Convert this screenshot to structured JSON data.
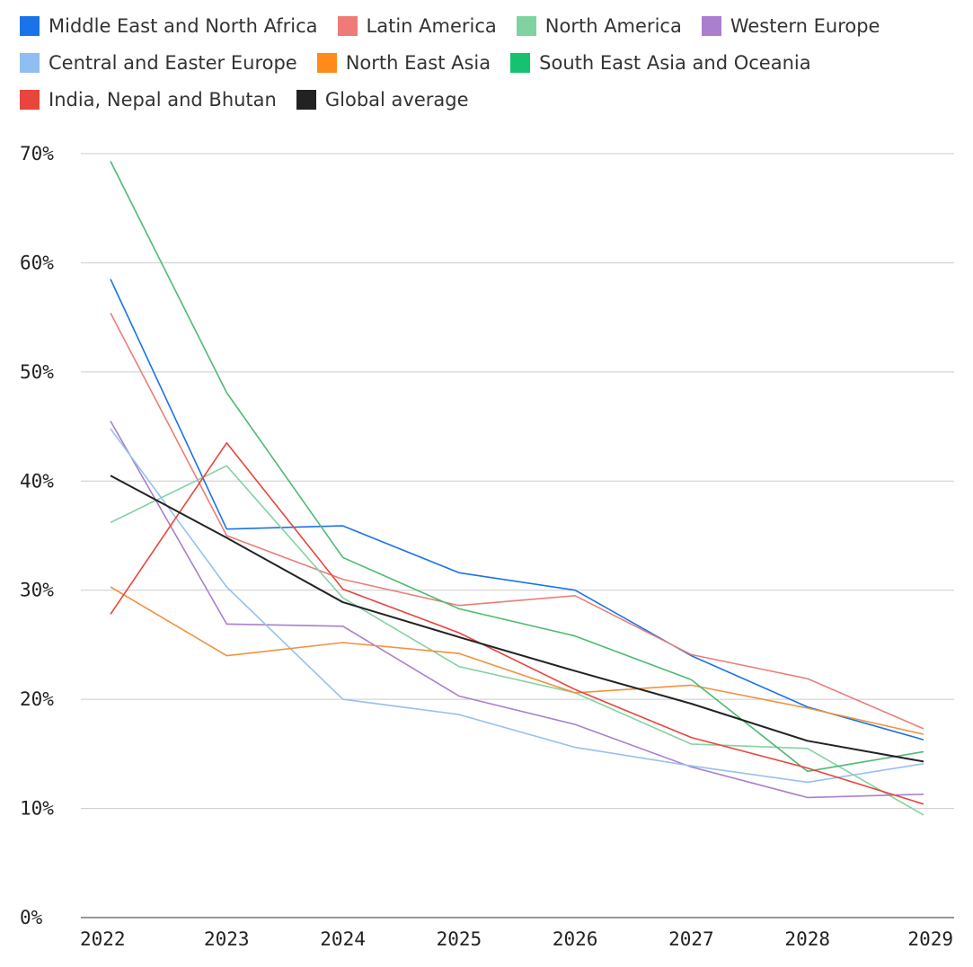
{
  "chart_data": {
    "type": "line",
    "title": "",
    "xlabel": "",
    "ylabel": "",
    "x": [
      "2022",
      "2023",
      "2024",
      "2025",
      "2026",
      "2027",
      "2028",
      "2029"
    ],
    "ylim": [
      0,
      70
    ],
    "yticks": [
      "0%",
      "10%",
      "20%",
      "30%",
      "40%",
      "50%",
      "60%",
      "70%"
    ],
    "grid": true,
    "legend_placement": "top",
    "series": [
      {
        "name": "Middle East and North Africa",
        "color": "#1a73e8",
        "values": [
          58.5,
          35.6,
          35.9,
          31.6,
          30.0,
          24.0,
          19.3,
          16.3
        ]
      },
      {
        "name": "Latin America",
        "color": "#ea7e78",
        "values": [
          55.4,
          35.0,
          31.0,
          28.6,
          29.5,
          24.1,
          21.9,
          17.3
        ]
      },
      {
        "name": "North America",
        "color": "#85d3a2",
        "values": [
          36.2,
          41.4,
          29.3,
          23.0,
          20.6,
          15.9,
          15.5,
          9.4
        ]
      },
      {
        "name": "Western Europe",
        "color": "#a97fce",
        "values": [
          45.5,
          26.9,
          26.7,
          20.3,
          17.7,
          13.8,
          11.0,
          11.3
        ]
      },
      {
        "name": "Central and Easter Europe",
        "color": "#96c0f0",
        "values": [
          44.8,
          30.3,
          20.0,
          18.6,
          15.6,
          13.9,
          12.4,
          14.1
        ]
      },
      {
        "name": "North East Asia",
        "color": "#f0923e",
        "values": [
          30.3,
          24.0,
          25.2,
          24.2,
          20.6,
          21.3,
          19.2,
          16.8
        ]
      },
      {
        "name": "South East Asia and Oceania",
        "color": "#4eba72",
        "values": [
          69.3,
          48.1,
          33.0,
          28.3,
          25.8,
          21.8,
          13.4,
          15.2
        ]
      },
      {
        "name": "India, Nepal and Bhutan",
        "color": "#e8453c",
        "values": [
          27.8,
          43.5,
          30.1,
          26.1,
          20.9,
          16.5,
          13.7,
          10.4
        ]
      },
      {
        "name": "Global average",
        "color": "#222222",
        "values": [
          40.5,
          34.8,
          28.9,
          25.7,
          22.6,
          19.6,
          16.2,
          14.3
        ]
      }
    ]
  },
  "legend": {
    "rows": [
      [
        {
          "label": "Middle East and North Africa",
          "color": "#1a73e8"
        },
        {
          "label": "Latin America",
          "color": "#ef7b76"
        },
        {
          "label": "North America",
          "color": "#7fd3a0"
        },
        {
          "label": "Western Europe",
          "color": "#a97fce"
        }
      ],
      [
        {
          "label": "Central and Easter Europe",
          "color": "#90bdf2"
        },
        {
          "label": "North East Asia",
          "color": "#ff8c1a"
        },
        {
          "label": "South East Asia and Oceania",
          "color": "#17c26e"
        }
      ],
      [
        {
          "label": "India, Nepal and Bhutan",
          "color": "#e8453c"
        },
        {
          "label": "Global average",
          "color": "#222222"
        }
      ]
    ]
  }
}
